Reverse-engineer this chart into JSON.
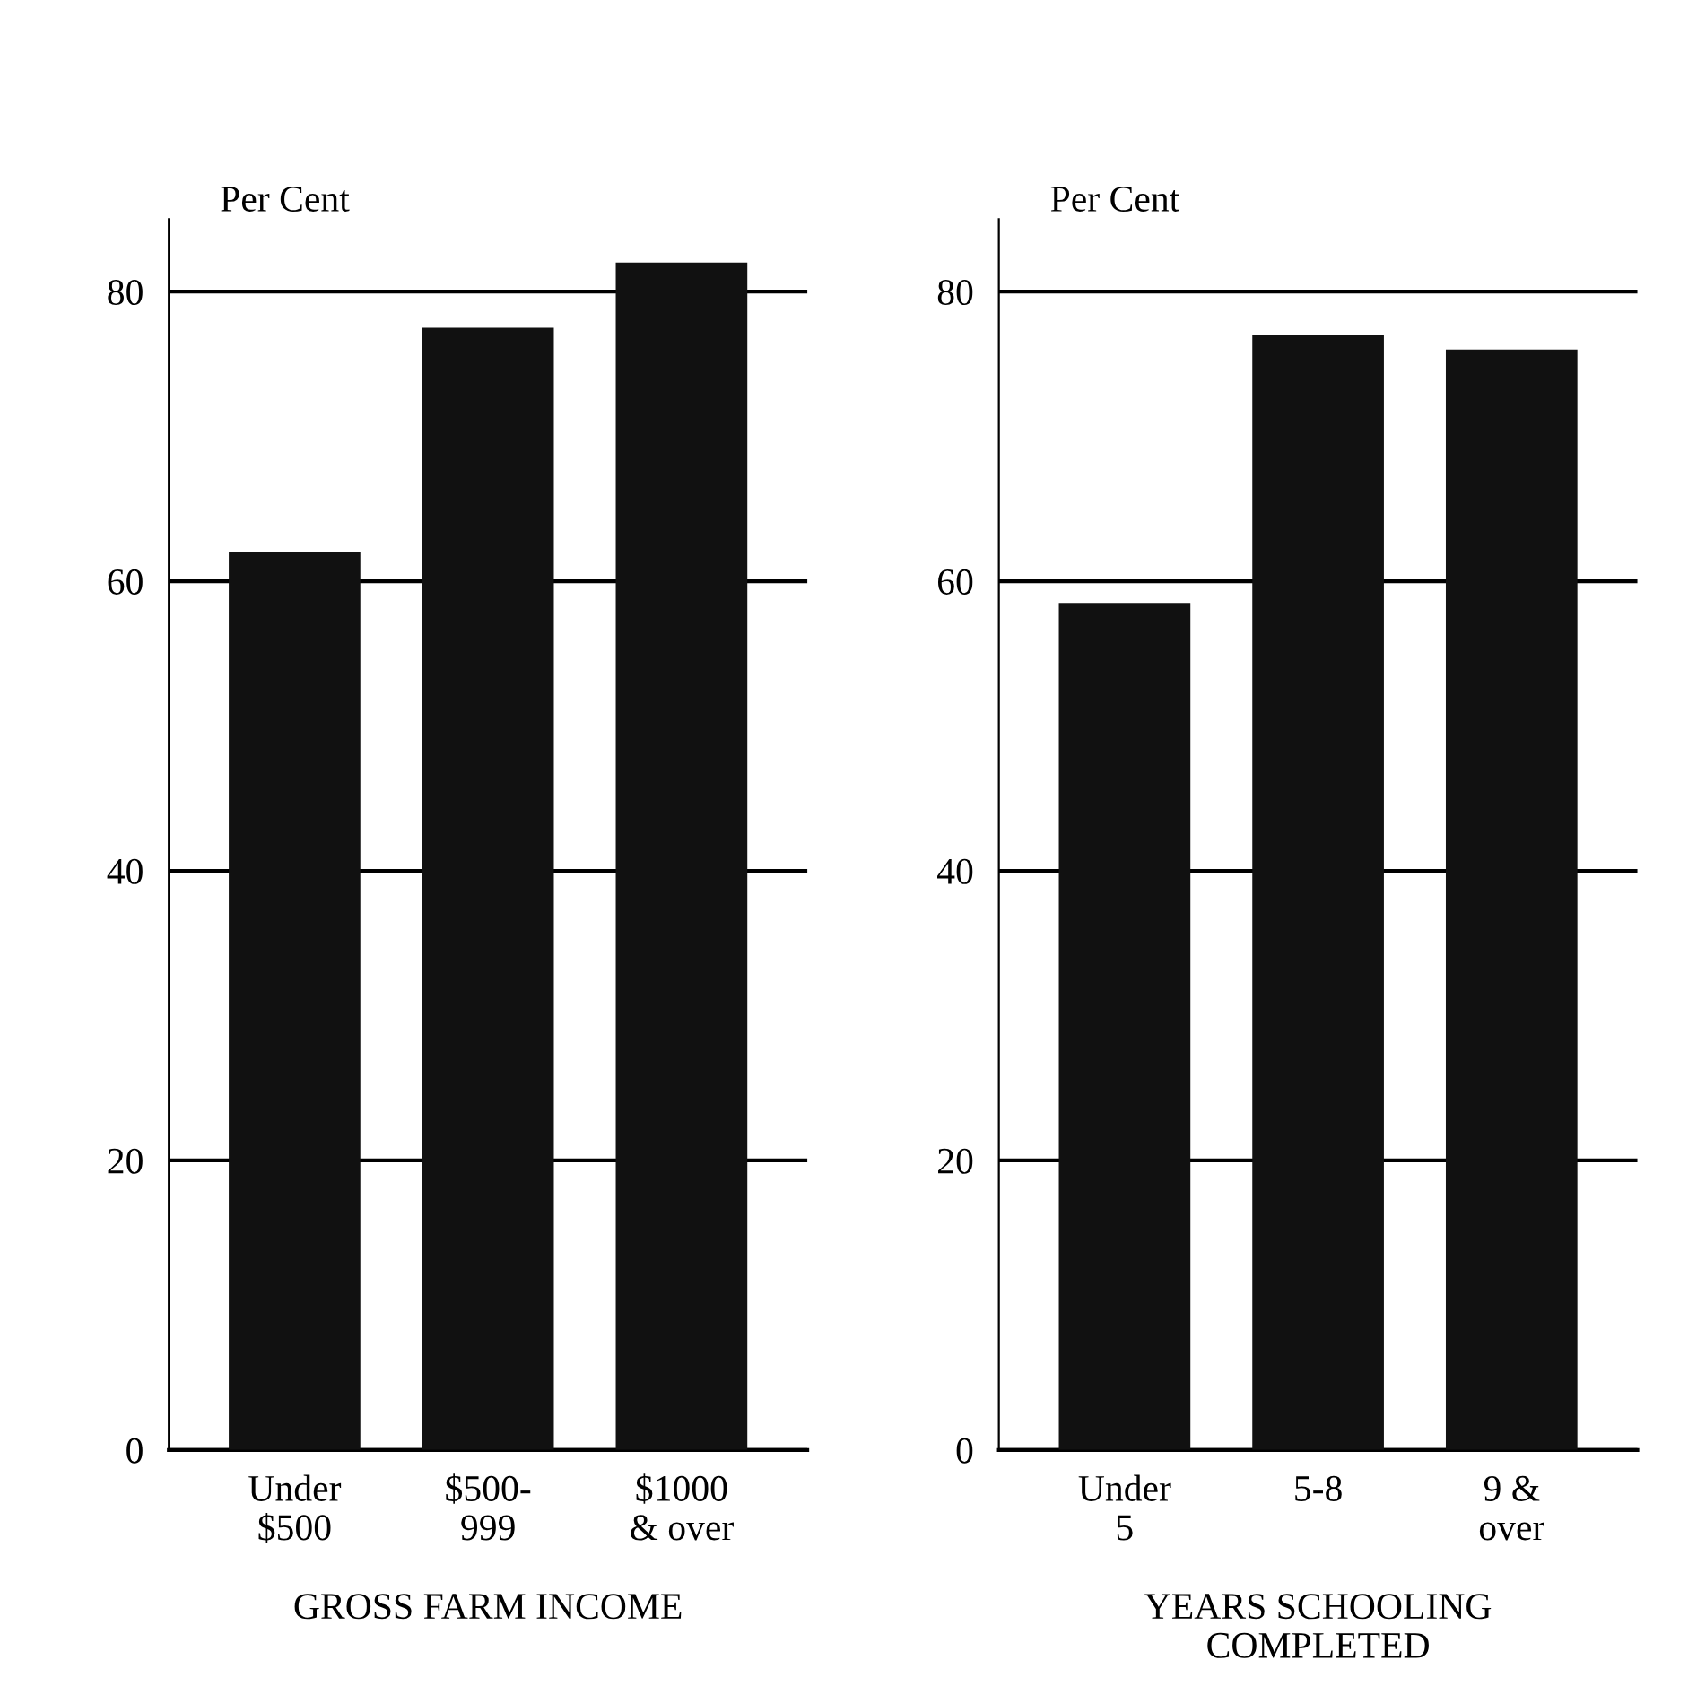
{
  "chart_data": [
    {
      "type": "bar",
      "ylabel": "Per Cent",
      "xlabel": "GROSS FARM INCOME",
      "categories": [
        "Under\n$500",
        "$500-\n999",
        "$1000\n& over"
      ],
      "values": [
        62,
        77.5,
        82
      ],
      "color": "#111111",
      "ylim": [
        0,
        85
      ],
      "yticks": [
        0,
        20,
        40,
        60,
        80
      ],
      "grid": "y"
    },
    {
      "type": "bar",
      "ylabel": "Per Cent",
      "xlabel": "YEARS SCHOOLING\nCOMPLETED",
      "categories": [
        "Under\n5",
        "5-8",
        "9 &\nover"
      ],
      "values": [
        58.5,
        77,
        76
      ],
      "color": "#111111",
      "ylim": [
        0,
        85
      ],
      "yticks": [
        0,
        20,
        40,
        60,
        80
      ],
      "grid": "y"
    }
  ]
}
